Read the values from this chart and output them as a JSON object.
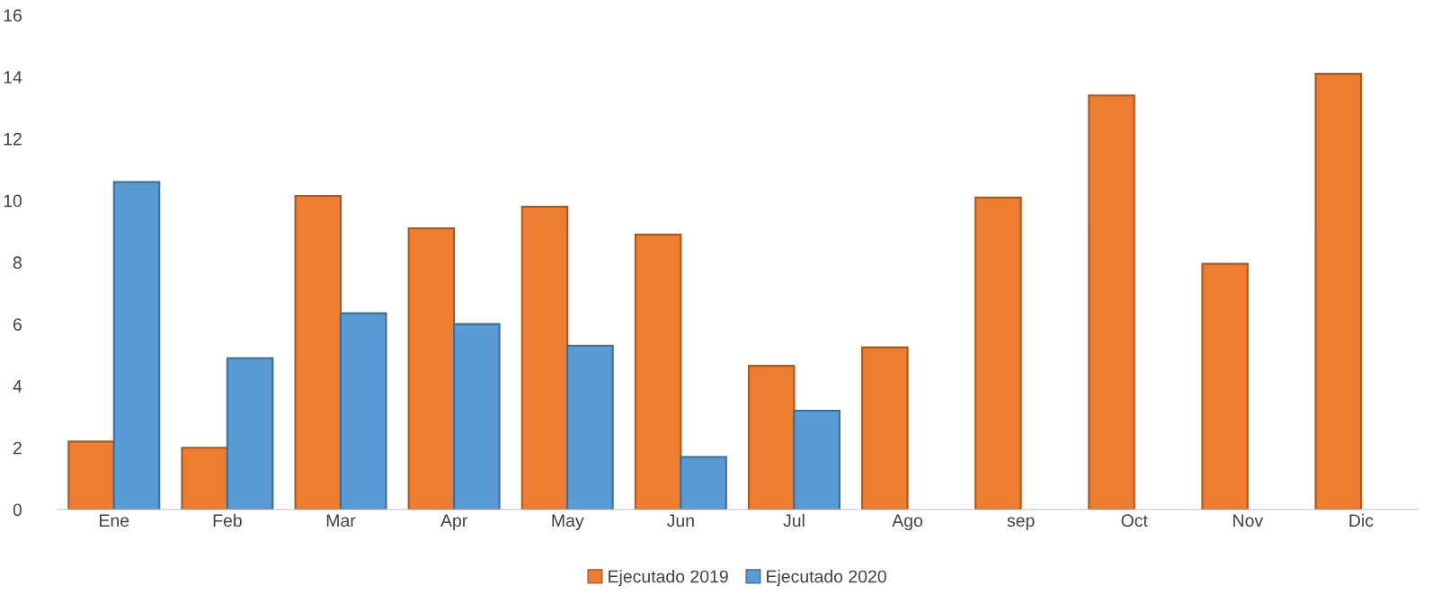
{
  "chart_data": {
    "type": "bar",
    "categories": [
      "Ene",
      "Feb",
      "Mar",
      "Apr",
      "May",
      "Jun",
      "Jul",
      "Ago",
      "sep",
      "Oct",
      "Nov",
      "Dic"
    ],
    "series": [
      {
        "name": "Ejecutado 2019",
        "color": "#ed7d31",
        "values": [
          2.2,
          2.0,
          10.15,
          9.1,
          9.8,
          8.9,
          4.65,
          5.25,
          10.1,
          13.4,
          7.95,
          14.1
        ]
      },
      {
        "name": "Ejecutado 2020",
        "color": "#5b9bd5",
        "values": [
          10.6,
          4.9,
          6.35,
          6.0,
          5.3,
          1.7,
          3.2,
          null,
          null,
          null,
          null,
          null
        ]
      }
    ],
    "ylim": [
      0,
      16
    ],
    "yticks": [
      0,
      2,
      4,
      6,
      8,
      10,
      12,
      14,
      16
    ],
    "grid": false,
    "legend": "bottom"
  }
}
